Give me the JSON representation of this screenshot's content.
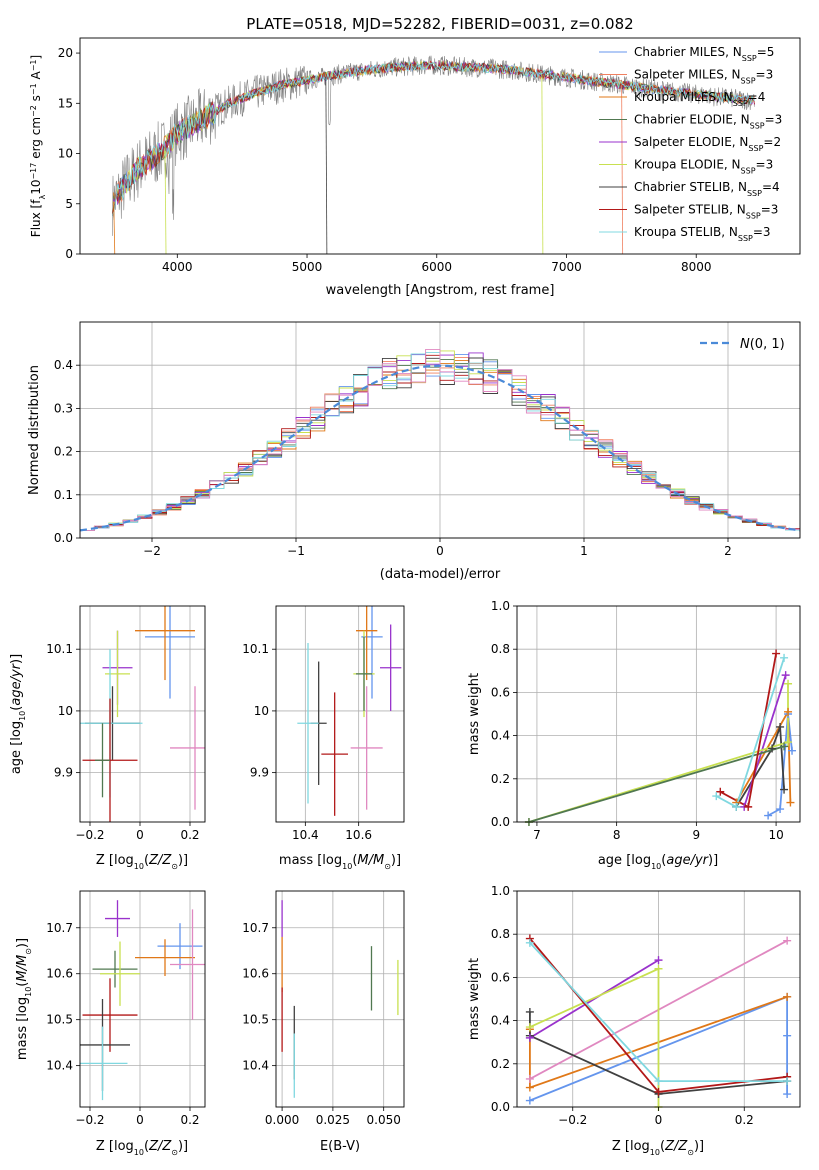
{
  "chart_data": [
    {
      "id": "spectrum",
      "type": "line",
      "title": "PLATE=0518, MJD=52282, FIBERID=0031, z=0.082",
      "xlabel": "wavelength [Angstrom, rest frame]",
      "ylabel": "Flux [f_λ10^{-17} erg cm^{-2} s^{-1} A^{-1}]",
      "xlim": [
        3250,
        8800
      ],
      "ylim": [
        0,
        21.5
      ],
      "xticks": [
        4000,
        5000,
        6000,
        7000,
        8000
      ],
      "yticks": [
        0,
        5,
        10,
        15,
        20
      ],
      "grid": false,
      "legend_position": "top-right",
      "continuum": {
        "x": [
          3500,
          3600,
          3700,
          3800,
          3900,
          4000,
          4200,
          4400,
          4600,
          4800,
          5000,
          5200,
          5400,
          5600,
          5800,
          6000,
          6200,
          6400,
          6600,
          6800,
          7000,
          7200,
          7400,
          7600,
          7800,
          8000,
          8200,
          8400
        ],
        "y": [
          5.0,
          7.0,
          8.5,
          9.5,
          10.5,
          12.0,
          13.5,
          15.0,
          16.0,
          16.8,
          17.3,
          17.8,
          18.2,
          18.5,
          18.7,
          18.8,
          18.6,
          18.5,
          18.3,
          17.9,
          17.6,
          17.2,
          16.9,
          16.5,
          16.2,
          15.9,
          15.6,
          15.3
        ]
      },
      "series": [
        {
          "name": "Chabrier MILES, N_SSP=5",
          "color": "#6495ed"
        },
        {
          "name": "Salpeter MILES, N_SSP=3",
          "color": "#f08060"
        },
        {
          "name": "Kroupa MILES, N_SSP=4",
          "color": "#e07818"
        },
        {
          "name": "Chabrier ELODIE, N_SSP=3",
          "color": "#507850"
        },
        {
          "name": "Salpeter ELODIE, N_SSP=2",
          "color": "#9932cc"
        },
        {
          "name": "Kroupa ELODIE, N_SSP=3",
          "color": "#c8e050"
        },
        {
          "name": "Chabrier STELIB, N_SSP=4",
          "color": "#404040"
        },
        {
          "name": "Salpeter STELIB, N_SSP=3",
          "color": "#b21818"
        },
        {
          "name": "Kroupa STELIB, N_SSP=3",
          "color": "#80d8e0"
        }
      ]
    },
    {
      "id": "residuals",
      "type": "line",
      "xlabel": "(data-model)/error",
      "ylabel": "Normed distribution",
      "xlim": [
        -2.5,
        2.5
      ],
      "ylim": [
        0,
        0.5
      ],
      "xticks": [
        -2,
        -1,
        0,
        1,
        2
      ],
      "yticks": [
        0.0,
        0.1,
        0.2,
        0.3,
        0.4
      ],
      "grid": true,
      "legend_position": "top-right",
      "legend": "N(0,1)",
      "normal_curve_color": "#4a8ad8",
      "bin_width": 0.1,
      "bin_start": -2.5,
      "histogram_colors": [
        "#6495ed",
        "#f08060",
        "#e07818",
        "#507850",
        "#9932cc",
        "#c8e050",
        "#404040",
        "#b21818",
        "#80d8e0",
        "#e088c0"
      ]
    },
    {
      "id": "age-vs-Z",
      "type": "scatter",
      "xlabel": "Z [log10(Z/Z_sun)]",
      "ylabel": "age [log10(age/yr)]",
      "xlim": [
        -0.24,
        0.26
      ],
      "ylim": [
        9.82,
        10.17
      ],
      "xticks": [
        -0.2,
        0.0,
        0.2
      ],
      "yticks": [
        9.9,
        10.0,
        10.1
      ],
      "grid": true,
      "points": [
        {
          "x": 0.12,
          "y": 10.12,
          "xerr": 0.1,
          "yerr": 0.1,
          "color": "#6495ed"
        },
        {
          "x": 0.22,
          "y": 9.94,
          "xerr": 0.1,
          "yerr": 0.1,
          "color": "#e088c0"
        },
        {
          "x": 0.1,
          "y": 10.13,
          "xerr": 0.12,
          "yerr": 0.08,
          "color": "#e07818"
        },
        {
          "x": -0.09,
          "y": 10.07,
          "xerr": 0.06,
          "yerr": 0.06,
          "color": "#9932cc"
        },
        {
          "x": -0.09,
          "y": 10.06,
          "xerr": 0.05,
          "yerr": 0.07,
          "color": "#c8e050"
        },
        {
          "x": -0.11,
          "y": 9.98,
          "xerr": 0.11,
          "yerr": 0.06,
          "color": "#404040"
        },
        {
          "x": -0.12,
          "y": 9.98,
          "xerr": 0.13,
          "yerr": 0.12,
          "color": "#80d8e0"
        },
        {
          "x": -0.12,
          "y": 9.92,
          "xerr": 0.11,
          "yerr": 0.1,
          "color": "#b21818"
        },
        {
          "x": -0.15,
          "y": 9.92,
          "xerr": 0.03,
          "yerr": 0.06,
          "color": "#507850"
        }
      ]
    },
    {
      "id": "age-vs-mass",
      "type": "scatter",
      "xlabel": "mass [log10(M/M_sun)]",
      "ylabel": "",
      "xlim": [
        10.29,
        10.77
      ],
      "ylim": [
        9.82,
        10.17
      ],
      "xticks": [
        10.4,
        10.6
      ],
      "yticks": [
        9.9,
        10.0,
        10.1
      ],
      "grid": true,
      "points": [
        {
          "x": 10.65,
          "y": 10.12,
          "xerr": 0.04,
          "yerr": 0.1,
          "color": "#6495ed"
        },
        {
          "x": 10.72,
          "y": 10.07,
          "xerr": 0.04,
          "yerr": 0.07,
          "color": "#9932cc"
        },
        {
          "x": 10.63,
          "y": 10.13,
          "xerr": 0.04,
          "yerr": 0.08,
          "color": "#e07818"
        },
        {
          "x": 10.62,
          "y": 10.06,
          "xerr": 0.04,
          "yerr": 0.07,
          "color": "#c8e050"
        },
        {
          "x": 10.62,
          "y": 10.06,
          "xerr": 0.03,
          "yerr": 0.06,
          "color": "#507850"
        },
        {
          "x": 10.45,
          "y": 9.98,
          "xerr": 0.03,
          "yerr": 0.1,
          "color": "#404040"
        },
        {
          "x": 10.41,
          "y": 9.98,
          "xerr": 0.04,
          "yerr": 0.13,
          "color": "#80d8e0"
        },
        {
          "x": 10.51,
          "y": 9.93,
          "xerr": 0.05,
          "yerr": 0.1,
          "color": "#b21818"
        },
        {
          "x": 10.63,
          "y": 9.94,
          "xerr": 0.06,
          "yerr": 0.1,
          "color": "#e088c0"
        }
      ]
    },
    {
      "id": "weight-vs-age",
      "type": "line",
      "xlabel": "age [log10(age/yr)]",
      "ylabel": "mass weight",
      "xlim": [
        6.75,
        10.3
      ],
      "ylim": [
        0,
        1.0
      ],
      "xticks": [
        7,
        8,
        9,
        10
      ],
      "yticks": [
        0.0,
        0.2,
        0.4,
        0.6,
        0.8,
        1.0
      ],
      "grid": true,
      "series": [
        {
          "color": "#6495ed",
          "x": [
            9.9,
            10.05,
            10.15,
            10.2
          ],
          "y": [
            0.03,
            0.06,
            0.5,
            0.33
          ]
        },
        {
          "color": "#e07818",
          "x": [
            9.5,
            10.15,
            10.18
          ],
          "y": [
            0.09,
            0.51,
            0.09
          ]
        },
        {
          "color": "#404040",
          "x": [
            9.5,
            9.95,
            10.05,
            10.1
          ],
          "y": [
            0.07,
            0.34,
            0.44,
            0.15
          ]
        },
        {
          "color": "#9932cc",
          "x": [
            9.6,
            10.12
          ],
          "y": [
            0.07,
            0.68
          ]
        },
        {
          "color": "#c8e050",
          "x": [
            6.9,
            10.15,
            10.15
          ],
          "y": [
            0.0,
            0.37,
            0.64
          ]
        },
        {
          "color": "#507850",
          "x": [
            6.9,
            10.1
          ],
          "y": [
            0.0,
            0.35
          ]
        },
        {
          "color": "#b21818",
          "x": [
            9.3,
            9.65,
            10.0
          ],
          "y": [
            0.14,
            0.07,
            0.78
          ]
        },
        {
          "color": "#80d8e0",
          "x": [
            9.25,
            9.5,
            10.1
          ],
          "y": [
            0.12,
            0.07,
            0.76
          ]
        }
      ]
    },
    {
      "id": "mass-vs-Z",
      "type": "scatter",
      "xlabel": "Z [log10(Z/Z_sun)]",
      "ylabel": "mass [log10(M/M_sun)]",
      "xlim": [
        -0.24,
        0.26
      ],
      "ylim": [
        10.31,
        10.78
      ],
      "xticks": [
        -0.2,
        0.0,
        0.2
      ],
      "yticks": [
        10.4,
        10.5,
        10.6,
        10.7
      ],
      "grid": true,
      "points": [
        {
          "x": -0.09,
          "y": 10.72,
          "xerr": 0.05,
          "yerr": 0.04,
          "color": "#9932cc"
        },
        {
          "x": 0.16,
          "y": 10.66,
          "xerr": 0.09,
          "yerr": 0.05,
          "color": "#6495ed"
        },
        {
          "x": 0.1,
          "y": 10.635,
          "xerr": 0.12,
          "yerr": 0.04,
          "color": "#e07818"
        },
        {
          "x": 0.21,
          "y": 10.62,
          "xerr": 0.09,
          "yerr": 0.12,
          "color": "#e088c0"
        },
        {
          "x": -0.1,
          "y": 10.61,
          "xerr": 0.09,
          "yerr": 0.04,
          "color": "#507850"
        },
        {
          "x": -0.08,
          "y": 10.6,
          "xerr": 0.08,
          "yerr": 0.07,
          "color": "#c8e050"
        },
        {
          "x": -0.12,
          "y": 10.51,
          "xerr": 0.11,
          "yerr": 0.08,
          "color": "#b21818"
        },
        {
          "x": -0.15,
          "y": 10.445,
          "xerr": 0.11,
          "yerr": 0.1,
          "color": "#404040"
        },
        {
          "x": -0.15,
          "y": 10.405,
          "xerr": 0.1,
          "yerr": 0.08,
          "color": "#80d8e0"
        }
      ]
    },
    {
      "id": "mass-vs-EBV",
      "type": "scatter",
      "xlabel": "E(B-V)",
      "ylabel": "",
      "xlim": [
        -0.003,
        0.06
      ],
      "ylim": [
        10.31,
        10.78
      ],
      "xticks": [
        0.0,
        0.025,
        0.05
      ],
      "xticklabels": [
        "0.000",
        "0.025",
        "0.050"
      ],
      "yticks": [
        10.4,
        10.5,
        10.6,
        10.7
      ],
      "grid": true,
      "points": [
        {
          "x": 0.0,
          "y": 10.72,
          "xerr": 0,
          "yerr": 0.04,
          "color": "#9932cc"
        },
        {
          "x": 0.0,
          "y": 10.62,
          "xerr": 0,
          "yerr": 0.06,
          "color": "#e07818"
        },
        {
          "x": 0.0,
          "y": 10.5,
          "xerr": 0,
          "yerr": 0.07,
          "color": "#b21818"
        },
        {
          "x": 0.006,
          "y": 10.45,
          "xerr": 0,
          "yerr": 0.08,
          "color": "#404040"
        },
        {
          "x": 0.006,
          "y": 10.4,
          "xerr": 0,
          "yerr": 0.07,
          "color": "#80d8e0"
        },
        {
          "x": 0.044,
          "y": 10.59,
          "xerr": 0,
          "yerr": 0.07,
          "color": "#507850"
        },
        {
          "x": 0.057,
          "y": 10.57,
          "xerr": 0,
          "yerr": 0.06,
          "color": "#c8e050"
        }
      ]
    },
    {
      "id": "weight-vs-Z",
      "type": "line",
      "xlabel": "Z [log10(Z/Z_sun)]",
      "ylabel": "mass weight",
      "xlim": [
        -0.33,
        0.33
      ],
      "ylim": [
        0,
        1.0
      ],
      "xticks": [
        -0.2,
        0.0,
        0.2
      ],
      "yticks": [
        0.0,
        0.2,
        0.4,
        0.6,
        0.8,
        1.0
      ],
      "grid": true,
      "series": [
        {
          "color": "#e088c0",
          "x": [
            -0.3,
            0.3
          ],
          "y": [
            0.13,
            0.77
          ]
        },
        {
          "color": "#6495ed",
          "x": [
            -0.3,
            0.3,
            0.3,
            0.3
          ],
          "y": [
            0.03,
            0.51,
            0.06,
            0.33
          ]
        },
        {
          "color": "#e07818",
          "x": [
            -0.3,
            -0.3,
            0.3
          ],
          "y": [
            0.36,
            0.09,
            0.51
          ]
        },
        {
          "color": "#404040",
          "x": [
            -0.3,
            -0.3,
            0.0,
            0.3
          ],
          "y": [
            0.44,
            0.33,
            0.06,
            0.12
          ]
        },
        {
          "color": "#9932cc",
          "x": [
            -0.3,
            0.0
          ],
          "y": [
            0.32,
            0.68
          ]
        },
        {
          "color": "#c8e050",
          "x": [
            -0.3,
            0.0,
            0.0
          ],
          "y": [
            0.37,
            0.64,
            0.0
          ]
        },
        {
          "color": "#b21818",
          "x": [
            -0.3,
            0.0,
            0.3
          ],
          "y": [
            0.78,
            0.07,
            0.14
          ]
        },
        {
          "color": "#80d8e0",
          "x": [
            -0.3,
            0.0,
            0.3
          ],
          "y": [
            0.76,
            0.12,
            0.12
          ]
        }
      ]
    }
  ]
}
